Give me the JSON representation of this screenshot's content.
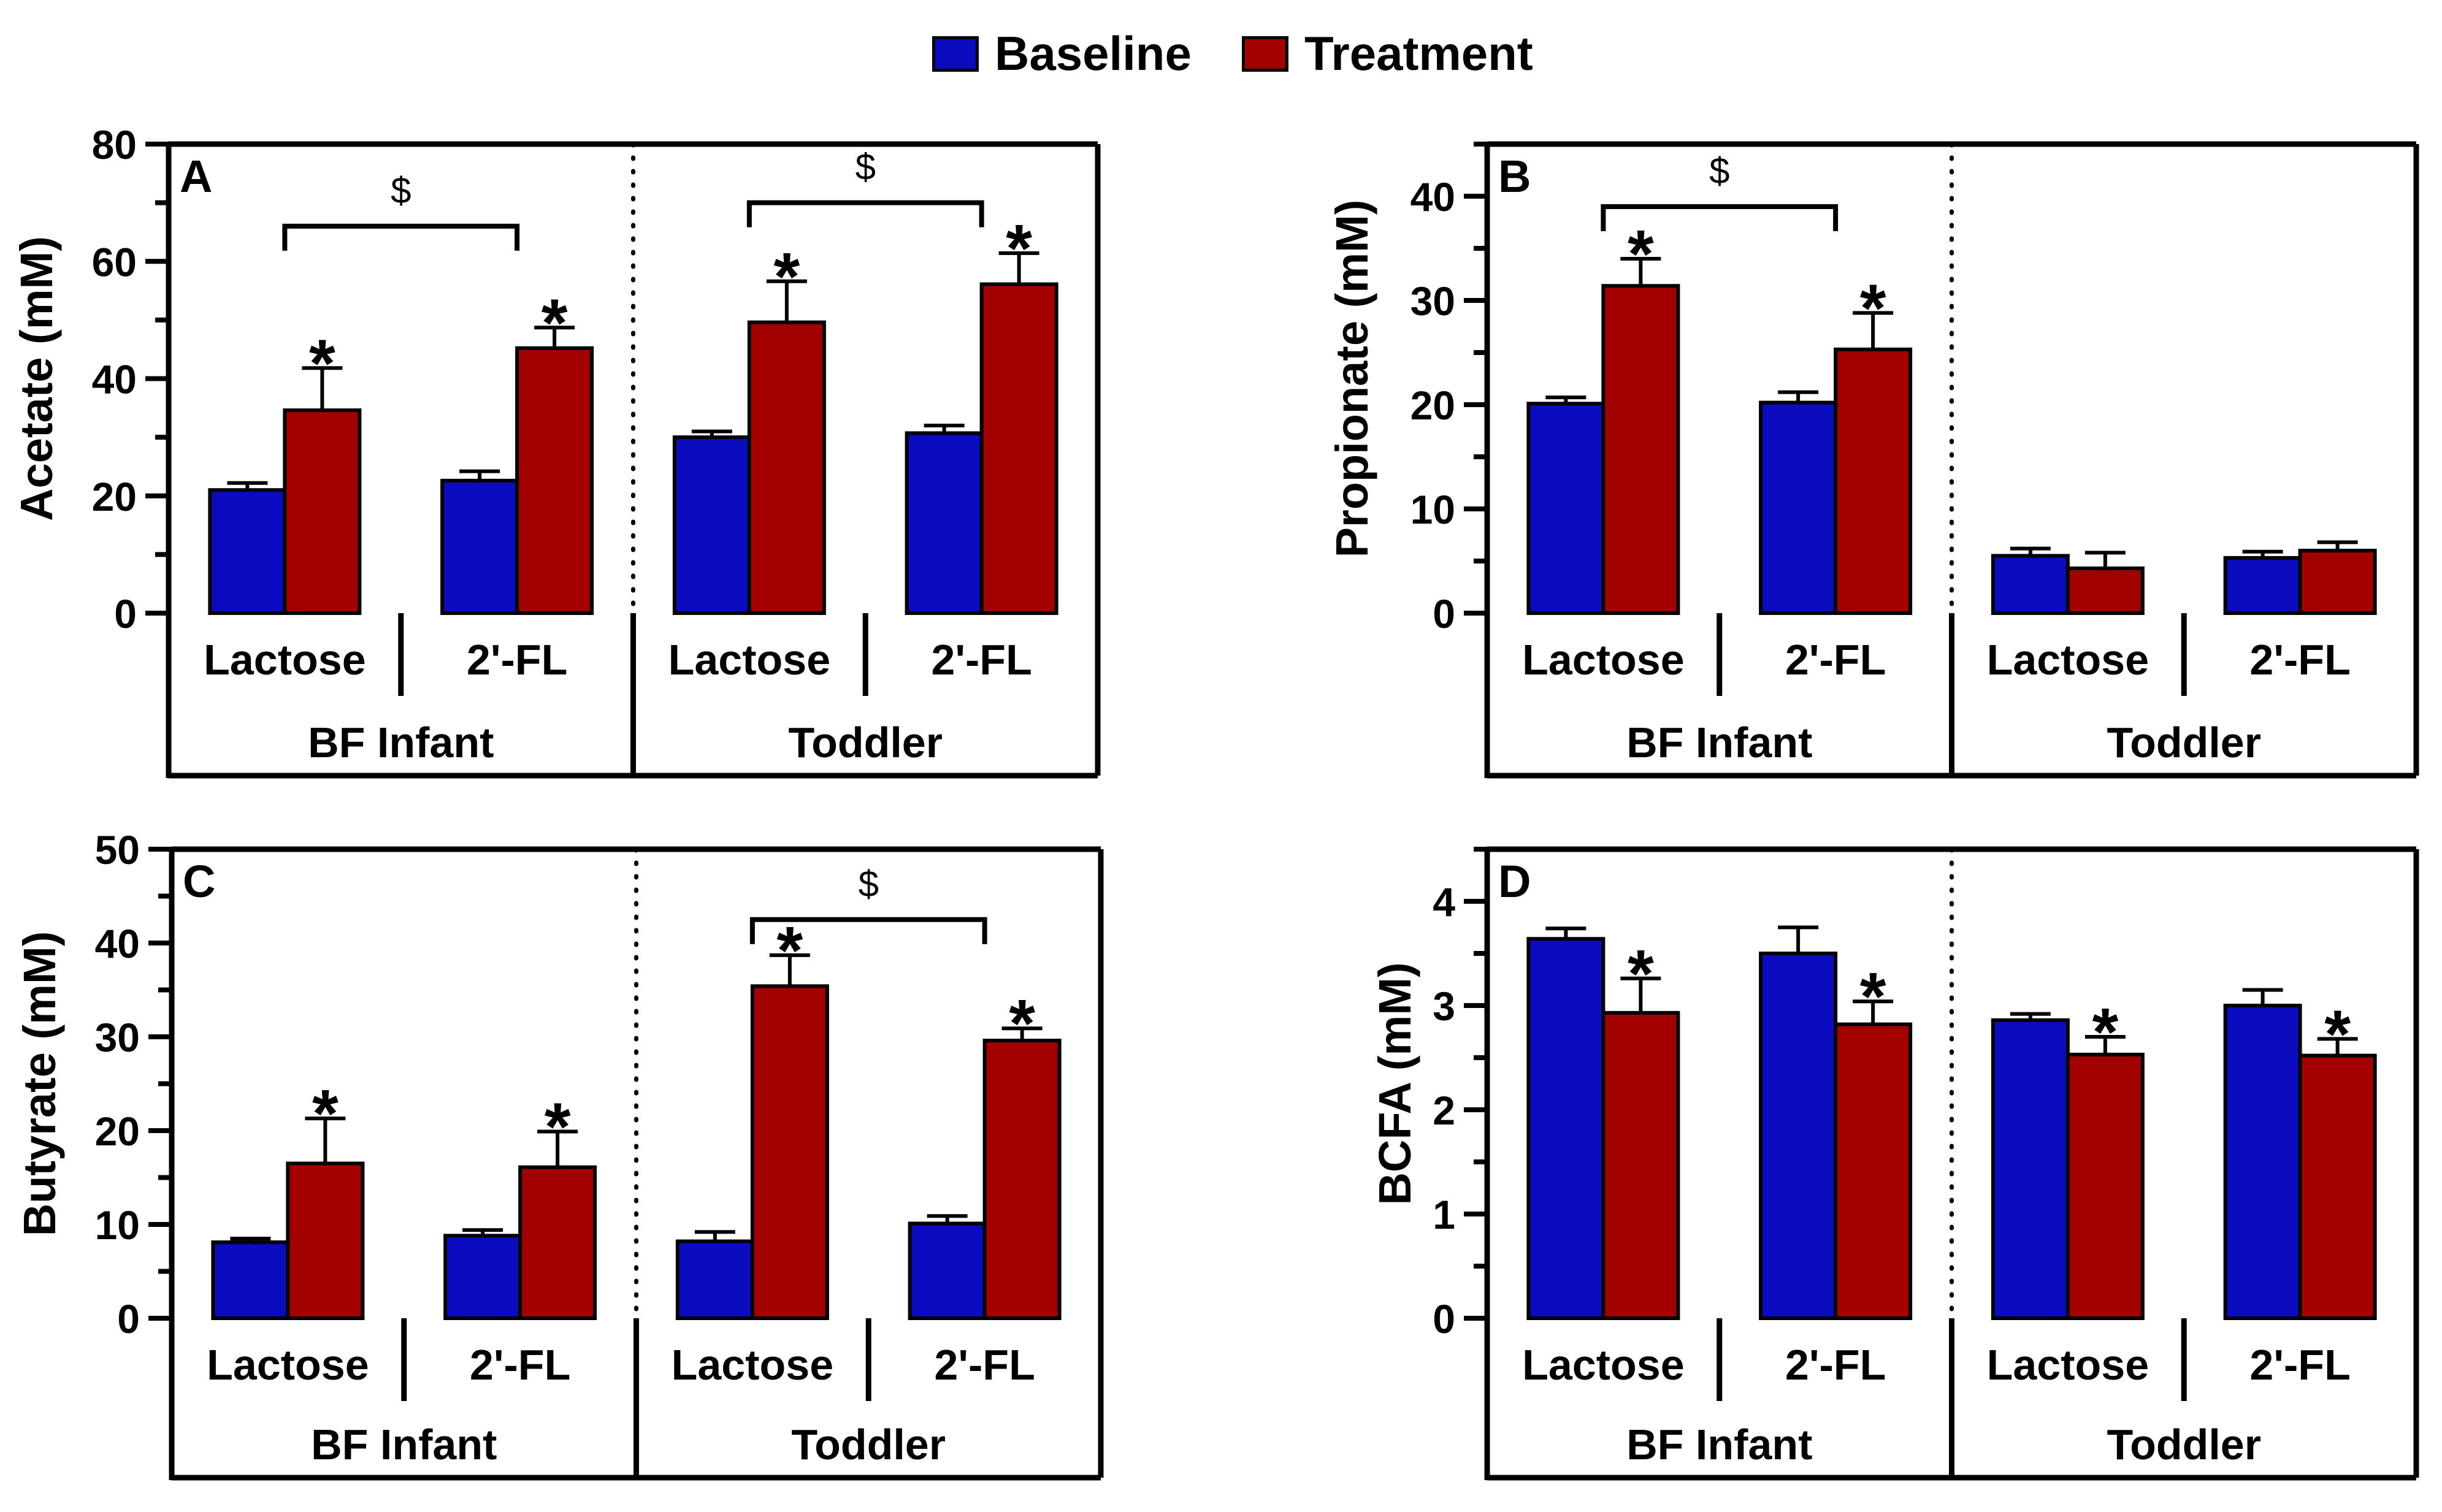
{
  "colors": {
    "baseline": "#0b0bbf",
    "treatment": "#a30000",
    "axis": "#000000"
  },
  "legend": {
    "baseline_label": "Baseline",
    "treatment_label": "Treatment"
  },
  "chart_data": [
    {
      "type": "bar",
      "panel": "A",
      "ylabel": "Acetate (mM)",
      "ylim": [
        0,
        80
      ],
      "ticks": [
        0,
        20,
        40,
        60,
        80
      ],
      "groups": [
        "BF Infant",
        "Toddler"
      ],
      "categories": [
        "Lactose",
        "2'-FL",
        "Lactose",
        "2'-FL"
      ],
      "series": [
        {
          "name": "Baseline",
          "values": [
            21,
            22.6,
            30,
            30.7
          ],
          "errors": [
            1.2,
            1.6,
            1.0,
            1.3
          ]
        },
        {
          "name": "Treatment",
          "values": [
            34.6,
            45.2,
            49.6,
            56.1
          ],
          "errors": [
            7.2,
            3.5,
            7.0,
            5.3
          ]
        }
      ],
      "significance": [
        {
          "series": "Treatment",
          "category": 0,
          "label": "*"
        },
        {
          "series": "Treatment",
          "category": 1,
          "label": "*"
        },
        {
          "series": "Treatment",
          "category": 2,
          "label": "*"
        },
        {
          "series": "Treatment",
          "category": 3,
          "label": "*"
        }
      ],
      "brackets": [
        {
          "from": 0,
          "to": 1,
          "y": 66,
          "label": "$"
        },
        {
          "from": 2,
          "to": 3,
          "y": 70,
          "label": "$"
        }
      ]
    },
    {
      "type": "bar",
      "panel": "B",
      "ylabel": "Propionate (mM)",
      "ylim": [
        0,
        45
      ],
      "ticks": [
        0,
        10,
        20,
        30,
        40
      ],
      "groups": [
        "BF Infant",
        "Toddler"
      ],
      "categories": [
        "Lactose",
        "2'-FL",
        "Lactose",
        "2'-FL"
      ],
      "series": [
        {
          "name": "Baseline",
          "values": [
            20.1,
            20.2,
            5.5,
            5.3
          ],
          "errors": [
            0.6,
            1.0,
            0.7,
            0.6
          ]
        },
        {
          "name": "Treatment",
          "values": [
            31.4,
            25.3,
            4.3,
            6.0
          ],
          "errors": [
            2.6,
            3.5,
            1.5,
            0.8
          ]
        }
      ],
      "significance": [
        {
          "series": "Treatment",
          "category": 0,
          "label": "*"
        },
        {
          "series": "Treatment",
          "category": 1,
          "label": "*"
        }
      ],
      "brackets": [
        {
          "from": 0,
          "to": 1,
          "y": 39,
          "label": "$"
        }
      ]
    },
    {
      "type": "bar",
      "panel": "C",
      "ylabel": "Butyrate (mM)",
      "ylim": [
        0,
        50
      ],
      "ticks": [
        0,
        10,
        20,
        30,
        40,
        50
      ],
      "groups": [
        "BF Infant",
        "Toddler"
      ],
      "categories": [
        "Lactose",
        "2'-FL",
        "Lactose",
        "2'-FL"
      ],
      "series": [
        {
          "name": "Baseline",
          "values": [
            8.1,
            8.8,
            8.2,
            10.1
          ],
          "errors": [
            0.4,
            0.6,
            1.0,
            0.8
          ]
        },
        {
          "name": "Treatment",
          "values": [
            16.5,
            16.1,
            35.4,
            29.6
          ],
          "errors": [
            4.8,
            3.8,
            3.3,
            1.3
          ]
        }
      ],
      "significance": [
        {
          "series": "Treatment",
          "category": 0,
          "label": "*"
        },
        {
          "series": "Treatment",
          "category": 1,
          "label": "*"
        },
        {
          "series": "Treatment",
          "category": 2,
          "label": "*"
        },
        {
          "series": "Treatment",
          "category": 3,
          "label": "*"
        }
      ],
      "brackets": [
        {
          "from": 2,
          "to": 3,
          "y": 42.5,
          "label": "$"
        }
      ]
    },
    {
      "type": "bar",
      "panel": "D",
      "ylabel": "BCFA (mM)",
      "ylim": [
        0,
        4.5
      ],
      "ticks": [
        0,
        1,
        2,
        3,
        4
      ],
      "groups": [
        "BF Infant",
        "Toddler"
      ],
      "categories": [
        "Lactose",
        "2'-FL",
        "Lactose",
        "2'-FL"
      ],
      "series": [
        {
          "name": "Baseline",
          "values": [
            3.64,
            3.5,
            2.86,
            3.0
          ],
          "errors": [
            0.1,
            0.25,
            0.06,
            0.15
          ]
        },
        {
          "name": "Treatment",
          "values": [
            2.93,
            2.82,
            2.53,
            2.52
          ],
          "errors": [
            0.33,
            0.22,
            0.17,
            0.16
          ]
        }
      ],
      "significance": [
        {
          "series": "Treatment",
          "category": 0,
          "label": "*"
        },
        {
          "series": "Treatment",
          "category": 1,
          "label": "*"
        },
        {
          "series": "Treatment",
          "category": 2,
          "label": "*"
        },
        {
          "series": "Treatment",
          "category": 3,
          "label": "*"
        }
      ],
      "brackets": []
    }
  ]
}
